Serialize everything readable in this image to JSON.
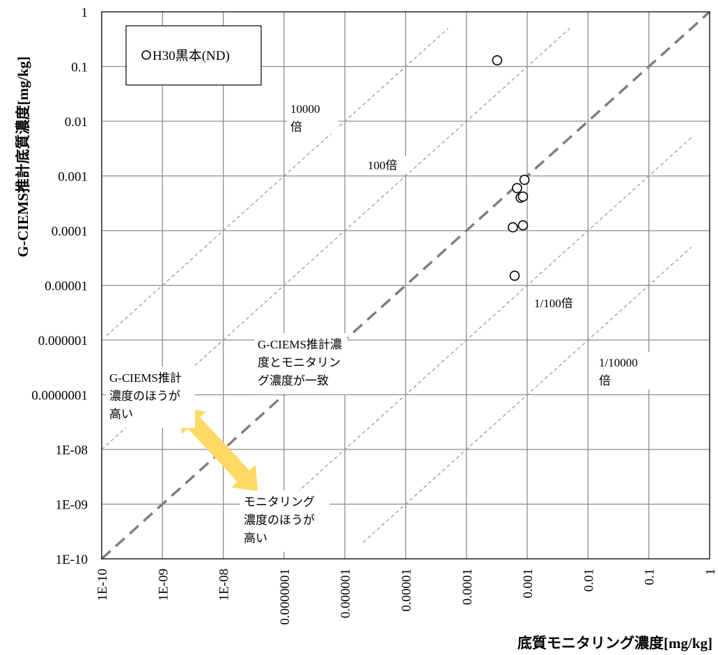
{
  "chart_data": {
    "type": "scatter",
    "xlabel": "底質モニタリング濃度[mg/kg]",
    "ylabel": "G-CIEMS推計底質濃度[mg/kg]",
    "x_scale": "log",
    "y_scale": "log",
    "xlim": [
      1e-10,
      1
    ],
    "ylim": [
      1e-10,
      1
    ],
    "grid": true,
    "x_tick_labels": [
      "1E-10",
      "1E-09",
      "1E-08",
      "0.0000001",
      "0.000001",
      "0.00001",
      "0.0001",
      "0.001",
      "0.01",
      "0.1",
      "1"
    ],
    "y_tick_labels": [
      "1E-10",
      "1E-09",
      "1E-08",
      "0.0000001",
      "0.000001",
      "0.00001",
      "0.0001",
      "0.001",
      "0.01",
      "0.1",
      "1"
    ],
    "legend": {
      "position": "top-left",
      "entries": [
        "H30黒本(ND)"
      ]
    },
    "series": [
      {
        "name": "H30黒本(ND)",
        "marker": "open-circle",
        "points": [
          [
            0.00032,
            0.13
          ],
          [
            0.00068,
            0.0006
          ],
          [
            0.00078,
            0.0004
          ],
          [
            0.00085,
            0.00042
          ],
          [
            0.0009,
            0.00085
          ],
          [
            0.00058,
            0.000115
          ],
          [
            0.00085,
            0.000125
          ],
          [
            0.00062,
            1.5e-05
          ]
        ]
      }
    ],
    "reference_lines": [
      {
        "ratio": 10000,
        "style": "dashed-thin",
        "x_range": [
          1.2e-10,
          5e-05
        ]
      },
      {
        "ratio": 100,
        "style": "dashed-thin",
        "x_range": [
          1e-10,
          0.005
        ]
      },
      {
        "ratio": 1,
        "style": "dashed-thick",
        "x_range": [
          1e-10,
          1
        ]
      },
      {
        "ratio": 0.01,
        "style": "dashed-thin",
        "x_range": [
          4e-08,
          0.5
        ]
      },
      {
        "ratio": 0.0001,
        "style": "dashed-thin",
        "x_range": [
          2e-06,
          0.5
        ]
      }
    ],
    "annotations": [
      {
        "lines": [
          "10000",
          "倍"
        ]
      },
      {
        "lines": [
          "100倍"
        ]
      },
      {
        "lines": [
          "1/100倍"
        ]
      },
      {
        "lines": [
          "1/10000",
          "倍"
        ]
      },
      {
        "lines": [
          "G-CIEMS推計濃",
          "度とモニタリン",
          "グ濃度が一致"
        ]
      },
      {
        "lines": [
          "G-CIEMS推計",
          "濃度のほうが",
          "高い"
        ]
      },
      {
        "lines": [
          "モニタリング",
          "濃度のほうが",
          "高い"
        ]
      }
    ],
    "arrow_color": "#FFD966"
  }
}
